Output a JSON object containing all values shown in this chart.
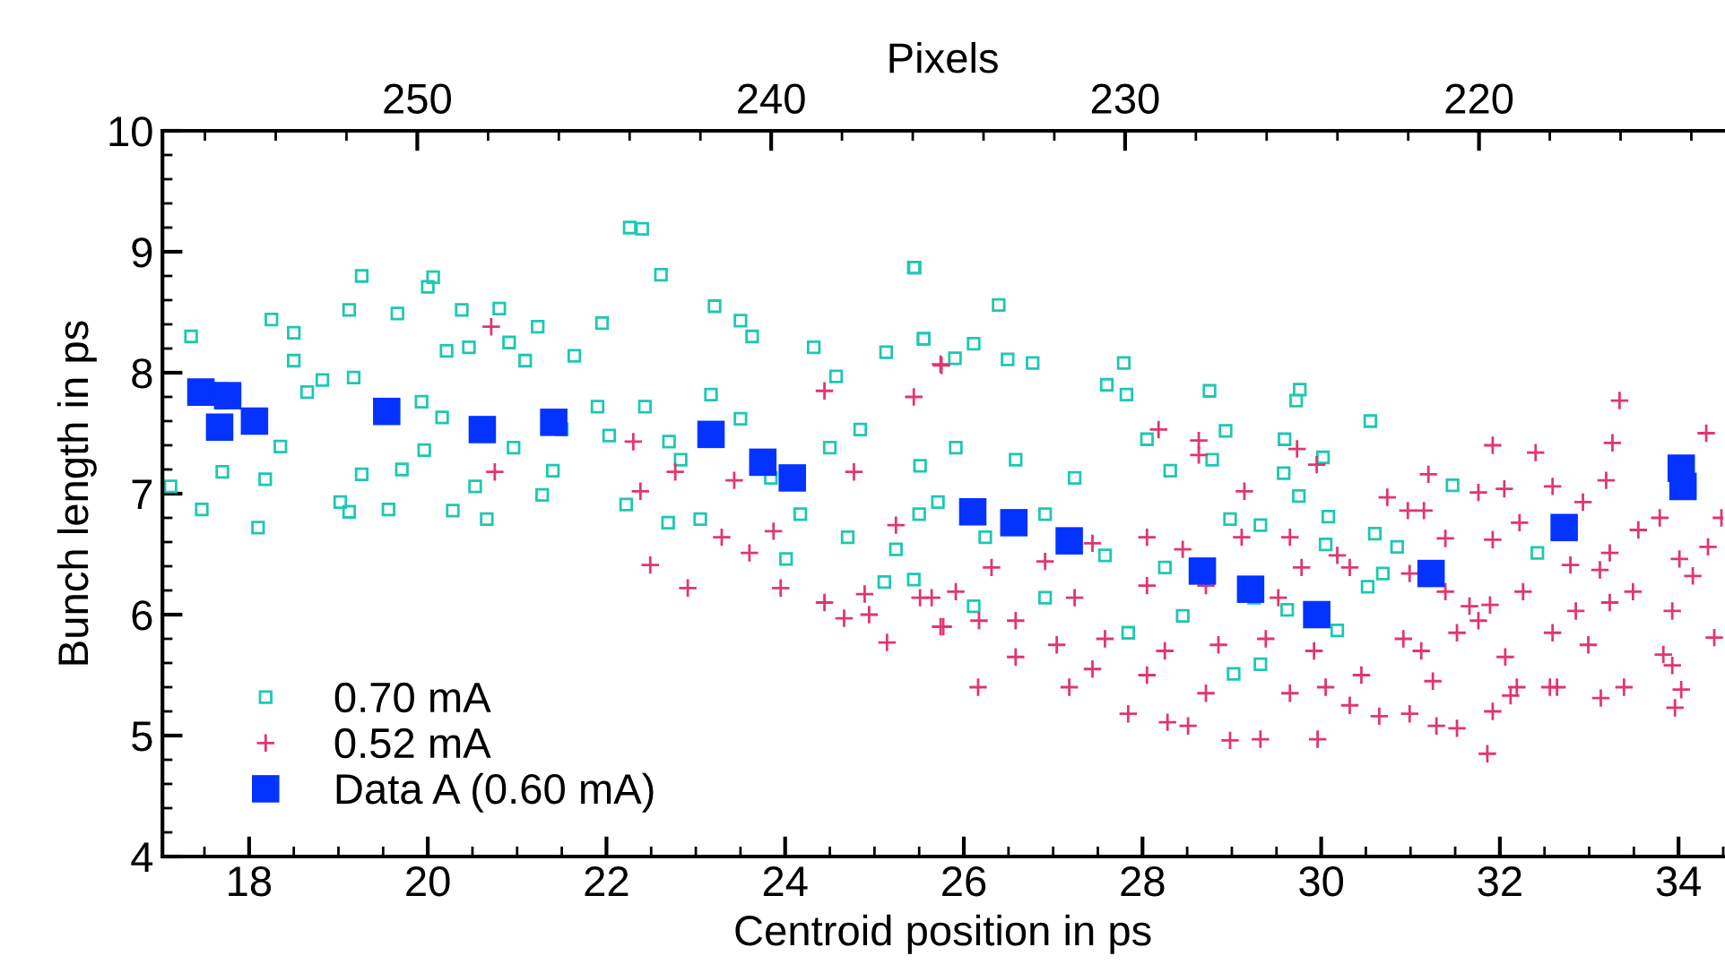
{
  "chart_data": {
    "type": "scatter",
    "xlabel": "Centroid position in ps",
    "ylabel": "Bunch length in ps",
    "x2label": "Pixels",
    "xlim": [
      17.03,
      34.5
    ],
    "xticks": [
      18,
      20,
      22,
      24,
      26,
      28,
      30,
      32,
      34
    ],
    "ylim": [
      4,
      10
    ],
    "yticks": [
      4,
      5,
      6,
      7,
      8,
      9,
      10
    ],
    "x2lim": [
      257.2,
      213.1
    ],
    "x2ticks": [
      250,
      240,
      230,
      220
    ],
    "grid": false,
    "legend": "bottom left",
    "series": [
      {
        "name": "0.70 mA",
        "color": "#1ec8b0",
        "marker": "square",
        "x": [
          17.35,
          17.12,
          17.47,
          17.7,
          18.1,
          18.25,
          18.5,
          18.5,
          18.35,
          18.18,
          18.65,
          18.82,
          19.12,
          19.26,
          19.17,
          19.02,
          19.12,
          19.26,
          19.56,
          19.66,
          20.0,
          20.06,
          19.71,
          19.93,
          19.96,
          20.16,
          20.28,
          20.38,
          20.46,
          20.21,
          20.66,
          20.53,
          20.8,
          21.09,
          20.91,
          21.28,
          21.23,
          21.4,
          21.64,
          21.95,
          22.26,
          22.4,
          22.61,
          22.22,
          22.69,
          22.03,
          22.43,
          22.83,
          23.21,
          23.5,
          23.05,
          23.63,
          24.01,
          24.32,
          24.57,
          25.13,
          25.45,
          25.55,
          25.11,
          24.5,
          24.84,
          25.51,
          25.71,
          23.84,
          23.5,
          23.17,
          22.7,
          21.5,
          21.9,
          20.96,
          24.17,
          24.7,
          25.24,
          25.44,
          26.39,
          25.55,
          26.11,
          25.9,
          26.49,
          26.77,
          27.79,
          27.6,
          27.82,
          28.75,
          29.76,
          29.72,
          30.55,
          28.93,
          29.59,
          30.02,
          31.47,
          29.58,
          25.91,
          26.58,
          27.24,
          28.05,
          28.31,
          28.78,
          25.5,
          26.24,
          26.91,
          27.58,
          28.25,
          28.98,
          29.32,
          29.75,
          30.08,
          30.6,
          30.85,
          32.42,
          30.05,
          30.69,
          30.52,
          29.62,
          29.25,
          30.18,
          29.02,
          27.84,
          26.91,
          26.11,
          29.32,
          28.45,
          25.44
        ],
        "values": [
          8.3,
          7.06,
          6.87,
          7.18,
          6.72,
          8.44,
          8.33,
          8.1,
          7.39,
          7.12,
          7.84,
          7.94,
          8.52,
          8.8,
          7.96,
          6.93,
          6.85,
          7.16,
          6.87,
          8.49,
          8.71,
          8.79,
          7.2,
          7.76,
          7.36,
          7.63,
          6.86,
          8.52,
          8.21,
          8.18,
          6.79,
          7.06,
          8.53,
          8.1,
          8.25,
          6.99,
          8.38,
          7.19,
          8.14,
          8.41,
          9.2,
          9.19,
          8.81,
          6.91,
          6.76,
          7.48,
          7.72,
          7.28,
          8.55,
          8.43,
          6.79,
          8.3,
          6.46,
          8.21,
          7.97,
          8.17,
          8.87,
          8.28,
          6.27,
          7.38,
          7.53,
          7.23,
          6.93,
          7.13,
          7.62,
          7.82,
          7.43,
          7.53,
          7.72,
          7.38,
          6.83,
          6.64,
          6.54,
          8.87,
          8.56,
          8.28,
          8.24,
          8.12,
          8.11,
          8.08,
          8.08,
          7.9,
          7.82,
          7.85,
          7.86,
          7.77,
          7.6,
          7.52,
          7.45,
          7.3,
          7.07,
          7.17,
          7.38,
          7.28,
          7.13,
          7.45,
          7.19,
          7.28,
          6.83,
          6.64,
          6.83,
          6.49,
          6.39,
          6.79,
          6.74,
          6.98,
          6.81,
          6.67,
          6.56,
          6.51,
          6.58,
          6.34,
          6.23,
          6.04,
          6.14,
          5.87,
          5.51,
          5.85,
          6.14,
          6.07,
          5.59,
          5.99,
          6.29
        ]
      },
      {
        "name": "0.52 mA",
        "color": "#e0366e",
        "marker": "cross",
        "x": [
          20.71,
          20.75,
          25.75,
          25.44,
          24.44,
          22.3,
          22.38,
          22.49,
          22.91,
          23.95,
          23.29,
          23.6,
          24.44,
          24.66,
          24.94,
          25.14,
          25.74,
          24.89,
          25.51,
          25.24,
          24.77,
          23.87,
          23.43,
          22.77,
          25.74,
          28.18,
          28.63,
          28.63,
          29.73,
          29.95,
          29.14,
          31.92,
          32.4,
          33.34,
          33.26,
          34.31,
          33.19,
          32.59,
          32.05,
          31.76,
          31.2,
          30.74,
          32.93,
          33.79,
          34.48,
          33.55,
          32.22,
          31.92,
          31.39,
          30.97,
          31.15,
          33.23,
          34.01,
          34.33,
          32.79,
          33.12,
          34.16,
          33.49,
          32.26,
          31.89,
          33.23,
          32.85,
          31.66,
          33.93,
          34.4,
          32.59,
          32.99,
          33.83,
          33.93,
          34.03,
          33.96,
          33.39,
          33.13,
          32.56,
          32.12,
          31.92,
          31.86,
          31.52,
          31.29,
          30.99,
          30.65,
          30.32,
          29.96,
          29.32,
          28.98,
          28.51,
          28.28,
          27.84,
          27.18,
          26.16,
          26.58,
          27.44,
          28.05,
          28.71,
          29.65,
          30.05,
          30.45,
          31.25,
          30.92,
          31.52,
          31.12,
          29.92,
          29.38,
          28.85,
          28.25,
          27.58,
          27.04,
          26.17,
          25.77,
          25.64,
          26.58,
          27.24,
          28.05,
          28.71,
          29.52,
          29.78,
          30.32,
          30.99,
          31.39,
          31.76,
          32.06,
          32.19,
          29.11,
          29.65,
          30.18,
          28.45,
          28.05,
          27.44,
          26.91,
          26.31,
          25.91,
          32.64
        ],
        "values": [
          8.38,
          7.18,
          8.06,
          7.8,
          7.85,
          7.43,
          7.02,
          6.41,
          6.22,
          6.22,
          6.64,
          6.51,
          6.1,
          5.97,
          6.0,
          5.77,
          5.9,
          6.17,
          6.14,
          6.74,
          7.18,
          6.69,
          7.11,
          7.18,
          8.07,
          7.53,
          7.44,
          7.32,
          7.37,
          7.24,
          7.02,
          7.4,
          7.34,
          7.77,
          7.42,
          7.5,
          7.11,
          7.06,
          7.04,
          7.01,
          7.16,
          6.97,
          6.93,
          6.8,
          6.8,
          6.7,
          6.76,
          6.62,
          6.63,
          6.86,
          6.86,
          6.51,
          6.46,
          6.56,
          6.41,
          6.37,
          6.32,
          6.19,
          6.19,
          6.08,
          6.1,
          6.03,
          6.07,
          6.03,
          5.81,
          5.85,
          5.75,
          5.67,
          5.58,
          5.38,
          5.23,
          5.4,
          5.31,
          5.4,
          5.33,
          5.2,
          4.85,
          5.06,
          5.08,
          5.18,
          5.16,
          5.25,
          4.97,
          4.97,
          4.96,
          5.08,
          5.11,
          5.18,
          5.4,
          5.4,
          5.65,
          5.55,
          5.5,
          5.35,
          5.35,
          5.4,
          5.5,
          5.45,
          5.8,
          5.85,
          5.7,
          5.7,
          5.8,
          5.75,
          5.7,
          5.8,
          5.75,
          5.95,
          5.9,
          6.14,
          5.95,
          6.14,
          6.24,
          6.24,
          6.14,
          6.39,
          6.39,
          6.34,
          6.19,
          5.95,
          5.65,
          5.4,
          6.64,
          6.64,
          6.49,
          6.54,
          6.64,
          6.59,
          6.44,
          6.39,
          6.19,
          5.4
        ]
      },
      {
        "name": "Data A (0.60 mA)",
        "color": "#0433ff",
        "marker": "square",
        "x": [
          17.46,
          17.76,
          17.67,
          18.06,
          19.54,
          20.61,
          21.41,
          23.17,
          23.75,
          24.08,
          26.1,
          26.56,
          27.18,
          28.67,
          29.21,
          29.95,
          31.23,
          32.72,
          34.03,
          34.05
        ],
        "values": [
          7.84,
          7.81,
          7.55,
          7.6,
          7.68,
          7.53,
          7.59,
          7.49,
          7.26,
          7.13,
          6.85,
          6.76,
          6.61,
          6.36,
          6.21,
          6.0,
          6.34,
          6.72,
          7.21,
          7.06
        ]
      }
    ]
  }
}
